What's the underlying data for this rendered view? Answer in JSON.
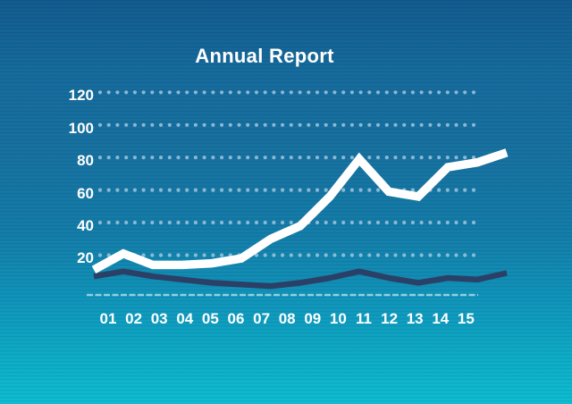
{
  "title": "Annual Report",
  "colors": {
    "bg_top": "#115a8d",
    "bg_mid": "#15719f",
    "bg_bottom": "#0dbdd1",
    "text": "#ffffff",
    "grid_dots": "#9fc6de",
    "baseline": "#cde9f5",
    "series_primary": "#ffffff",
    "series_secondary": "#2b4066"
  },
  "chart_data": {
    "type": "line",
    "title": "Annual Report",
    "categories": [
      "01",
      "02",
      "03",
      "04",
      "05",
      "06",
      "07",
      "08",
      "09",
      "10",
      "11",
      "12",
      "13",
      "14",
      "15"
    ],
    "series": [
      {
        "name": "primary-white-line",
        "color": "#ffffff",
        "values": [
          11,
          21,
          14,
          14,
          15,
          18,
          30,
          38,
          56,
          79,
          59,
          56,
          74,
          77,
          83
        ]
      },
      {
        "name": "secondary-navy-line",
        "color": "#2b4066",
        "values": [
          7,
          10,
          7,
          5,
          3,
          2,
          1,
          3,
          6,
          10,
          6,
          3,
          6,
          5,
          9
        ]
      }
    ],
    "yticks": [
      20,
      40,
      60,
      80,
      100,
      120
    ],
    "ylim": [
      0,
      130
    ],
    "grid": "dotted-horizontal",
    "legend": "none",
    "xlabel": "",
    "ylabel": ""
  }
}
